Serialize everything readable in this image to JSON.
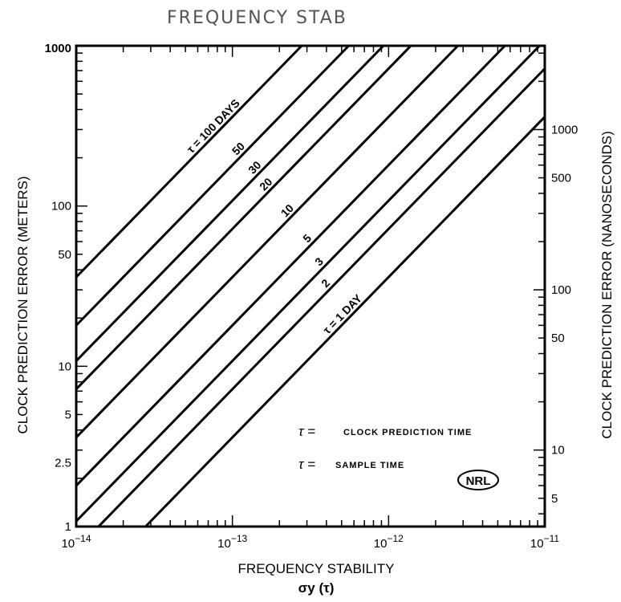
{
  "header": {
    "title": "FREQUENCY STAB"
  },
  "legend": {
    "item1": "CLOCK PREDICTION TIME",
    "item2": "SAMPLE TIME",
    "item1_symbol": "τ =",
    "item2_symbol": "τ ="
  },
  "logo": {
    "text": "NRL"
  },
  "chart_data": {
    "type": "line",
    "title": "FREQUENCY STAB",
    "xlabel": "FREQUENCY STABILITY",
    "xlabel2": "σy (τ)",
    "ylabel_left": "CLOCK PREDICTION ERROR (METERS)",
    "ylabel_right": "CLOCK PREDICTION ERROR (NANOSECONDS)",
    "x_scale": "log",
    "y_scale": "log",
    "xlim": [
      1e-14,
      1e-11
    ],
    "ylim_left": [
      1,
      1000
    ],
    "ylim_right_ns": [
      3.33,
      3336
    ],
    "x_ticks": [
      {
        "value": 1e-14,
        "base": "10",
        "exp": "−14"
      },
      {
        "value": 1e-13,
        "base": "10",
        "exp": "−13"
      },
      {
        "value": 1e-12,
        "base": "10",
        "exp": "−12"
      },
      {
        "value": 1e-11,
        "base": "10",
        "exp": "−11"
      }
    ],
    "y_left_ticks": [
      {
        "value": 1000,
        "label": "1000"
      },
      {
        "value": 100,
        "label": "100"
      },
      {
        "value": 50,
        "label": "50"
      },
      {
        "value": 10,
        "label": "10"
      },
      {
        "value": 5,
        "label": "5"
      },
      {
        "value": 2.5,
        "label": "2.5"
      },
      {
        "value": 1,
        "label": "1"
      }
    ],
    "y_right_ticks": [
      {
        "value": 1000,
        "label": "1000"
      },
      {
        "value": 500,
        "label": "500"
      },
      {
        "value": 100,
        "label": "100"
      },
      {
        "value": 50,
        "label": "50"
      },
      {
        "value": 10,
        "label": "10"
      },
      {
        "value": 5,
        "label": "5"
      }
    ],
    "series": [
      {
        "name": "τ = 100 DAYS",
        "days": 100,
        "y_at_xmin": 36
      },
      {
        "name": "50",
        "days": 50,
        "y_at_xmin": 18
      },
      {
        "name": "30",
        "days": 30,
        "y_at_xmin": 10.8
      },
      {
        "name": "20",
        "days": 20,
        "y_at_xmin": 7.2
      },
      {
        "name": "10",
        "days": 10,
        "y_at_xmin": 3.6
      },
      {
        "name": "5",
        "days": 5,
        "y_at_xmin": 1.8
      },
      {
        "name": "3",
        "days": 3,
        "y_at_xmin": 1.08
      },
      {
        "name": "2",
        "days": 2,
        "y_at_xmin": 0.72
      },
      {
        "name": "τ = 1 DAY",
        "days": 1,
        "y_at_xmin": 0.36
      }
    ]
  }
}
